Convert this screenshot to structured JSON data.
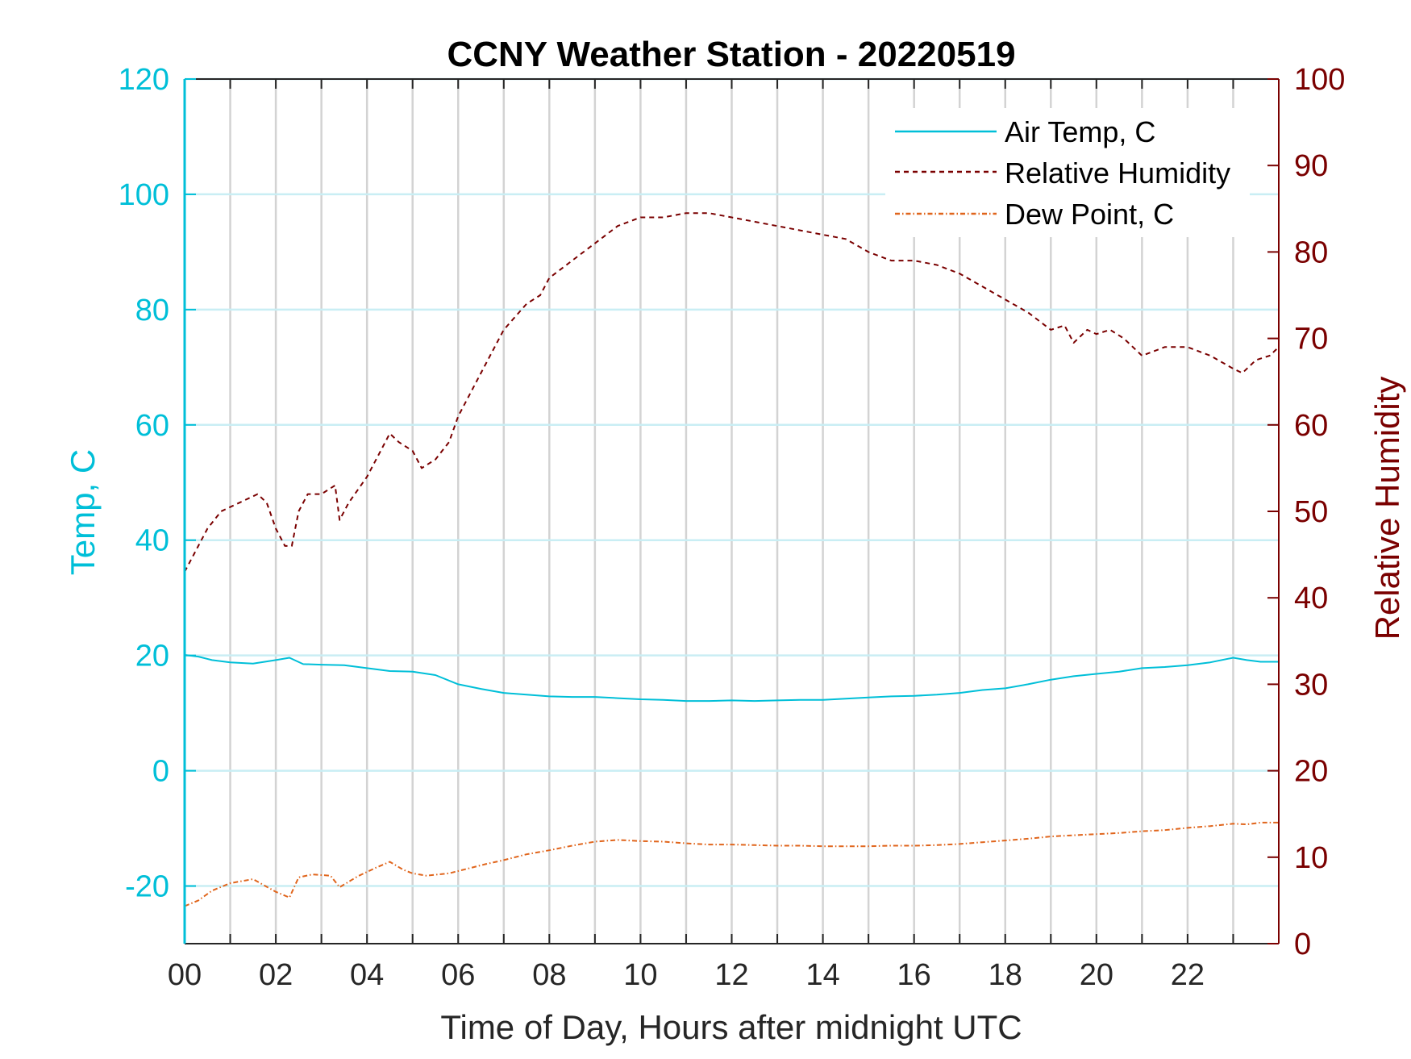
{
  "chart_data": {
    "type": "line",
    "title": "CCNY Weather Station - 20220519",
    "xlabel": "Time of Day, Hours after midnight UTC",
    "ylabel_left": "Temp, C",
    "ylabel_right": "Relative Humidity",
    "xlim": [
      0,
      24
    ],
    "ylim_left": [
      -30,
      120
    ],
    "ylim_right": [
      0,
      100
    ],
    "x_ticks": [
      0,
      2,
      4,
      6,
      8,
      10,
      12,
      14,
      16,
      18,
      20,
      22
    ],
    "x_tick_labels": [
      "00",
      "02",
      "04",
      "06",
      "08",
      "10",
      "12",
      "14",
      "16",
      "18",
      "20",
      "22"
    ],
    "y_left_ticks": [
      -20,
      0,
      20,
      40,
      60,
      80,
      100,
      120
    ],
    "y_left_tick_labels": [
      "-20",
      "0",
      "20",
      "40",
      "60",
      "80",
      "100",
      "120"
    ],
    "y_right_ticks": [
      0,
      10,
      20,
      30,
      40,
      50,
      60,
      70,
      80,
      90,
      100
    ],
    "y_right_tick_labels": [
      "0",
      "10",
      "20",
      "30",
      "40",
      "50",
      "60",
      "70",
      "80",
      "90",
      "100"
    ],
    "grid": {
      "vertical_every_hour": true,
      "horizontal_at_left_ticks": true
    },
    "legend_position": "top-right",
    "colors": {
      "air_temp": "#00bfd8",
      "relative_humidity": "#7a0000",
      "dew_point": "#e0651c",
      "vgrid": "#d3d3d3",
      "hgrid": "#c9eef4"
    },
    "series": [
      {
        "name": "Air Temp, C",
        "axis": "left",
        "style": "solid",
        "x": [
          0,
          0.3,
          0.6,
          1.0,
          1.5,
          2.0,
          2.3,
          2.6,
          3.0,
          3.5,
          4.0,
          4.5,
          5.0,
          5.5,
          6.0,
          6.5,
          7.0,
          7.5,
          8.0,
          8.5,
          9.0,
          9.5,
          10.0,
          10.5,
          11.0,
          11.5,
          12.0,
          12.5,
          13.0,
          13.5,
          14.0,
          14.5,
          15.0,
          15.5,
          16.0,
          16.5,
          17.0,
          17.5,
          18.0,
          18.5,
          19.0,
          19.5,
          20.0,
          20.5,
          21.0,
          21.5,
          22.0,
          22.5,
          23.0,
          23.3,
          23.6,
          24.0
        ],
        "y": [
          20.1,
          19.8,
          19.2,
          18.8,
          18.6,
          19.2,
          19.6,
          18.5,
          18.4,
          18.3,
          17.8,
          17.3,
          17.2,
          16.6,
          15.0,
          14.2,
          13.5,
          13.2,
          12.9,
          12.8,
          12.8,
          12.6,
          12.4,
          12.3,
          12.1,
          12.1,
          12.2,
          12.1,
          12.2,
          12.3,
          12.3,
          12.5,
          12.7,
          12.9,
          13.0,
          13.2,
          13.5,
          14.0,
          14.3,
          15.0,
          15.8,
          16.4,
          16.8,
          17.2,
          17.8,
          18.0,
          18.3,
          18.8,
          19.6,
          19.2,
          18.9,
          18.9
        ]
      },
      {
        "name": "Relative Humidity",
        "axis": "right",
        "style": "dashed",
        "x": [
          0,
          0.2,
          0.5,
          0.8,
          1.2,
          1.6,
          1.8,
          2.0,
          2.2,
          2.35,
          2.5,
          2.7,
          3.0,
          3.3,
          3.4,
          3.6,
          4.0,
          4.3,
          4.5,
          4.7,
          5.0,
          5.2,
          5.5,
          5.8,
          6.0,
          6.5,
          7.0,
          7.5,
          7.8,
          8.0,
          8.5,
          9.0,
          9.5,
          10.0,
          10.5,
          11.0,
          11.5,
          12.0,
          12.5,
          13.0,
          13.5,
          14.0,
          14.5,
          15.0,
          15.5,
          16.0,
          16.5,
          17.0,
          17.5,
          18.0,
          18.5,
          19.0,
          19.3,
          19.5,
          19.8,
          20.0,
          20.3,
          20.6,
          20.8,
          21.0,
          21.5,
          22.0,
          22.5,
          23.0,
          23.2,
          23.5,
          23.8,
          24.0
        ],
        "y": [
          43,
          45,
          48,
          50,
          51,
          52,
          51,
          48,
          46,
          46,
          50,
          52,
          52,
          53,
          49,
          51,
          54,
          57,
          59,
          58,
          57,
          55,
          56,
          58,
          61,
          66,
          71,
          74,
          75,
          77,
          79,
          81,
          83,
          84,
          84,
          84.5,
          84.5,
          84,
          83.5,
          83,
          82.5,
          82,
          81.5,
          80,
          79,
          79,
          78.5,
          77.5,
          76,
          74.5,
          73,
          71,
          71.5,
          69.5,
          71,
          70.5,
          71,
          70,
          69,
          68,
          69,
          69,
          68,
          66.5,
          66,
          67.5,
          68,
          69
        ]
      },
      {
        "name": "Dew Point, C",
        "axis": "left",
        "style": "dash-dot",
        "x": [
          0,
          0.3,
          0.6,
          1.0,
          1.5,
          2.0,
          2.3,
          2.5,
          2.8,
          3.2,
          3.4,
          3.8,
          4.2,
          4.5,
          4.8,
          5.0,
          5.3,
          5.8,
          6.2,
          6.6,
          7.0,
          7.5,
          8.0,
          8.5,
          9.0,
          9.5,
          10.0,
          10.5,
          11.0,
          11.5,
          12.0,
          12.5,
          13.0,
          13.5,
          14.0,
          14.5,
          15.0,
          15.5,
          16.0,
          16.5,
          17.0,
          17.5,
          18.0,
          18.5,
          19.0,
          19.5,
          20.0,
          20.5,
          21.0,
          21.5,
          22.0,
          22.5,
          23.0,
          23.3,
          23.6,
          24.0
        ],
        "y": [
          -23.5,
          -22.5,
          -20.8,
          -19.5,
          -18.8,
          -21.0,
          -22.0,
          -18.5,
          -18.0,
          -18.2,
          -20.2,
          -18.3,
          -16.8,
          -15.8,
          -17.2,
          -17.8,
          -18.2,
          -17.8,
          -17.0,
          -16.2,
          -15.5,
          -14.5,
          -13.8,
          -13.0,
          -12.3,
          -12.0,
          -12.2,
          -12.3,
          -12.6,
          -12.8,
          -12.8,
          -12.9,
          -13.0,
          -13.0,
          -13.1,
          -13.1,
          -13.1,
          -13.0,
          -13.0,
          -12.9,
          -12.7,
          -12.4,
          -12.1,
          -11.8,
          -11.4,
          -11.2,
          -11.0,
          -10.8,
          -10.5,
          -10.3,
          -9.9,
          -9.6,
          -9.2,
          -9.3,
          -9.0,
          -9.0
        ]
      }
    ]
  }
}
